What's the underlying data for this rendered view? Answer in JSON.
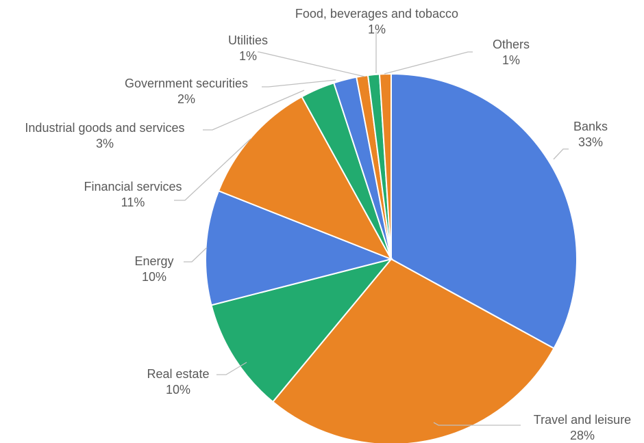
{
  "chart_data": {
    "type": "pie",
    "title": "",
    "start_angle_deg": 0,
    "direction": "clockwise",
    "slices": [
      {
        "name": "Banks",
        "value": 33,
        "label": "33%",
        "color": "#4e7fdd"
      },
      {
        "name": "Travel and leisure",
        "value": 28,
        "label": "28%",
        "color": "#ea8424"
      },
      {
        "name": "Real estate",
        "value": 10,
        "label": "10%",
        "color": "#22ab6f"
      },
      {
        "name": "Energy",
        "value": 10,
        "label": "10%",
        "color": "#4e7fdd"
      },
      {
        "name": "Financial services",
        "value": 11,
        "label": "11%",
        "color": "#ea8424"
      },
      {
        "name": "Industrial goods and services",
        "value": 3,
        "label": "3%",
        "color": "#22ab6f"
      },
      {
        "name": "Government securities",
        "value": 2,
        "label": "2%",
        "color": "#4e7fdd"
      },
      {
        "name": "Utilities",
        "value": 1,
        "label": "1%",
        "color": "#ea8424"
      },
      {
        "name": "Food, beverages and tobacco",
        "value": 1,
        "label": "1%",
        "color": "#22ab6f"
      },
      {
        "name": "Others",
        "value": 1,
        "label": "1%",
        "color": "#ea8424"
      }
    ]
  }
}
